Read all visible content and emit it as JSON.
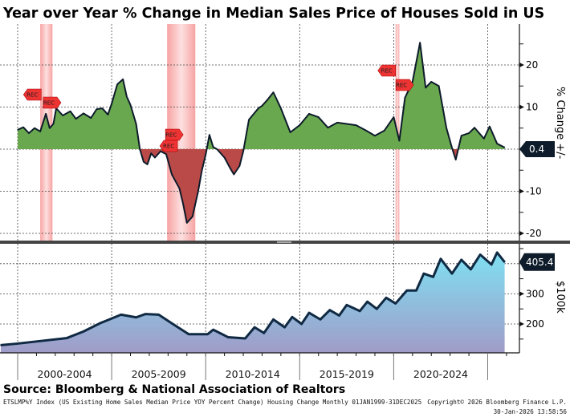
{
  "chart_data": [
    {
      "type": "area",
      "title": "Year over Year % Change in Median Sales Price of Houses Sold in US",
      "ylabel": "% Change +/-",
      "ylim": [
        -22,
        30
      ],
      "yticks": [
        "20",
        "10",
        "-10",
        "-20"
      ],
      "grid": true,
      "last_value_label": "0.4",
      "recession_marker": "REC",
      "recessions": [
        [
          2001.2,
          2001.85
        ],
        [
          2007.95,
          2009.45
        ],
        [
          2020.1,
          2020.3
        ]
      ],
      "colors": {
        "positive": "#6aa84f",
        "negative": "#b94a48",
        "line": "#0d1b2a",
        "recession": "#f4a6a6"
      },
      "points": [
        [
          2000.0,
          4.6
        ],
        [
          2000.3,
          5.2
        ],
        [
          2000.6,
          3.8
        ],
        [
          2000.9,
          5.0
        ],
        [
          2001.2,
          4.2
        ],
        [
          2001.5,
          8.4
        ],
        [
          2001.7,
          5.0
        ],
        [
          2001.9,
          6.0
        ],
        [
          2002.05,
          9.7
        ],
        [
          2002.4,
          8.0
        ],
        [
          2002.8,
          9.0
        ],
        [
          2003.1,
          7.2
        ],
        [
          2003.5,
          8.5
        ],
        [
          2003.9,
          7.4
        ],
        [
          2004.2,
          9.5
        ],
        [
          2004.5,
          9.7
        ],
        [
          2004.8,
          8.2
        ],
        [
          2005.0,
          10.8
        ],
        [
          2005.3,
          15.4
        ],
        [
          2005.6,
          16.6
        ],
        [
          2005.8,
          12.5
        ],
        [
          2006.0,
          10.5
        ],
        [
          2006.3,
          6.0
        ],
        [
          2006.5,
          0.0
        ],
        [
          2006.7,
          -3.0
        ],
        [
          2006.9,
          -3.6
        ],
        [
          2007.1,
          -1.0
        ],
        [
          2007.3,
          -2.0
        ],
        [
          2007.6,
          -0.5
        ],
        [
          2007.9,
          -1.2
        ],
        [
          2008.2,
          -6.0
        ],
        [
          2008.6,
          -9.3
        ],
        [
          2008.8,
          -13.0
        ],
        [
          2009.0,
          -17.5
        ],
        [
          2009.3,
          -16.0
        ],
        [
          2009.6,
          -10.0
        ],
        [
          2009.8,
          -5.0
        ],
        [
          2010.0,
          -1.3
        ],
        [
          2010.2,
          3.4
        ],
        [
          2010.4,
          0.5
        ],
        [
          2010.6,
          0.0
        ],
        [
          2011.0,
          -2.0
        ],
        [
          2011.3,
          -4.5
        ],
        [
          2011.5,
          -6.0
        ],
        [
          2011.8,
          -4.0
        ],
        [
          2012.0,
          -0.5
        ],
        [
          2012.3,
          7.0
        ],
        [
          2012.8,
          9.7
        ],
        [
          2013.0,
          10.3
        ],
        [
          2013.3,
          11.8
        ],
        [
          2013.6,
          13.5
        ],
        [
          2014.0,
          9.7
        ],
        [
          2014.5,
          4.0
        ],
        [
          2015.0,
          5.7
        ],
        [
          2015.5,
          8.4
        ],
        [
          2016.0,
          7.6
        ],
        [
          2016.5,
          5.1
        ],
        [
          2017.0,
          6.3
        ],
        [
          2017.5,
          6.0
        ],
        [
          2018.0,
          5.7
        ],
        [
          2018.5,
          4.5
        ],
        [
          2019.0,
          3.2
        ],
        [
          2019.5,
          4.4
        ],
        [
          2020.0,
          7.6
        ],
        [
          2020.3,
          2.0
        ],
        [
          2020.6,
          12.2
        ],
        [
          2021.0,
          16.0
        ],
        [
          2021.4,
          25.3
        ],
        [
          2021.7,
          14.6
        ],
        [
          2022.0,
          16.0
        ],
        [
          2022.4,
          15.0
        ],
        [
          2022.8,
          5.1
        ],
        [
          2023.1,
          0.3
        ],
        [
          2023.3,
          -2.5
        ],
        [
          2023.6,
          3.2
        ],
        [
          2024.0,
          3.8
        ],
        [
          2024.3,
          5.1
        ],
        [
          2024.8,
          2.5
        ],
        [
          2025.1,
          5.4
        ],
        [
          2025.5,
          1.3
        ],
        [
          2025.9,
          0.4
        ]
      ]
    },
    {
      "type": "area",
      "ylabel": "$100k",
      "ylim": [
        100,
        450
      ],
      "yticks": [
        "300",
        "200"
      ],
      "grid": true,
      "last_value_label": "405.4",
      "colors": {
        "top": "#7fe0f2",
        "bottom": "#a09cc8",
        "line": "#102a43"
      },
      "points": [
        [
          1999.1,
          130
        ],
        [
          2000.0,
          135
        ],
        [
          2001.0,
          142
        ],
        [
          2002.6,
          153
        ],
        [
          2003.5,
          175
        ],
        [
          2004.4,
          203
        ],
        [
          2005.5,
          231
        ],
        [
          2006.3,
          222
        ],
        [
          2006.8,
          233
        ],
        [
          2007.5,
          231
        ],
        [
          2008.3,
          198
        ],
        [
          2009.1,
          166
        ],
        [
          2010.1,
          166
        ],
        [
          2010.4,
          181
        ],
        [
          2011.2,
          156
        ],
        [
          2012.1,
          152
        ],
        [
          2012.6,
          189
        ],
        [
          2013.1,
          170
        ],
        [
          2013.6,
          215
        ],
        [
          2014.2,
          189
        ],
        [
          2014.6,
          223
        ],
        [
          2015.1,
          200
        ],
        [
          2015.5,
          237
        ],
        [
          2016.1,
          215
        ],
        [
          2016.6,
          246
        ],
        [
          2017.1,
          228
        ],
        [
          2017.5,
          263
        ],
        [
          2018.2,
          243
        ],
        [
          2018.6,
          274
        ],
        [
          2019.1,
          250
        ],
        [
          2019.6,
          287
        ],
        [
          2020.1,
          268
        ],
        [
          2020.7,
          311
        ],
        [
          2021.2,
          311
        ],
        [
          2021.6,
          367
        ],
        [
          2022.1,
          356
        ],
        [
          2022.5,
          416
        ],
        [
          2023.1,
          367
        ],
        [
          2023.6,
          413
        ],
        [
          2024.1,
          381
        ],
        [
          2024.6,
          430
        ],
        [
          2025.2,
          397
        ],
        [
          2025.5,
          437
        ],
        [
          2025.9,
          405.4
        ]
      ]
    }
  ],
  "xaxis": {
    "labels": [
      "2000-2004",
      "2005-2009",
      "2010-2014",
      "2015-2019",
      "2020-2024"
    ]
  },
  "source": "Source: Bloomberg & National Association of Realtors",
  "footer": {
    "description": "ETSLMP%Y Index (US Existing Home Sales Median Price YOY Percent Change) Housing Change Monthly 01JAN1999-31DEC2025",
    "copyright": "Copyright© 2026 Bloomberg Finance L.P.",
    "timestamp": "30-Jan-2026 13:58:56"
  }
}
